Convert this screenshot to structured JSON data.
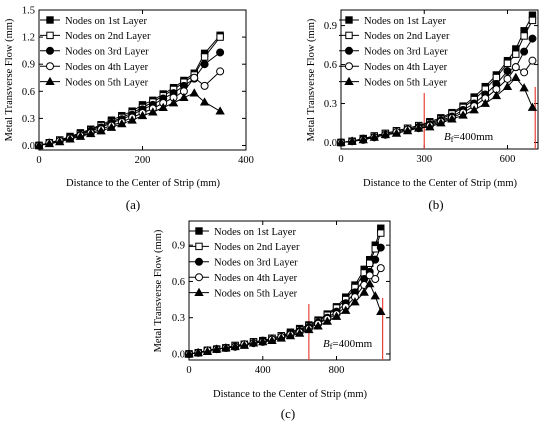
{
  "chart_data": [
    {
      "type": "line",
      "panel_label": "(a)",
      "xlabel": "Distance to the Center of Strip (mm)",
      "ylabel": "Metal Transverse Flow (mm)",
      "xlim": [
        0,
        400
      ],
      "ylim": [
        -0.05,
        1.5
      ],
      "xticks": [
        "0",
        "200",
        "400"
      ],
      "xtick_values": [
        0,
        200,
        400
      ],
      "yticks": [
        "0.0",
        "0.3",
        "0.6",
        "0.9",
        "1.2",
        "1.5"
      ],
      "ytick_values": [
        0,
        0.3,
        0.6,
        0.9,
        1.2,
        1.5
      ],
      "legend_position": "top-left",
      "x": [
        0,
        20,
        40,
        60,
        80,
        100,
        120,
        140,
        160,
        180,
        200,
        220,
        240,
        260,
        280,
        300,
        320,
        350
      ],
      "series": [
        {
          "name": "Nodes on 1st Layer",
          "marker": "square-filled",
          "values": [
            0.0,
            0.03,
            0.06,
            0.1,
            0.14,
            0.18,
            0.23,
            0.28,
            0.33,
            0.38,
            0.45,
            0.5,
            0.57,
            0.64,
            0.72,
            0.8,
            1.02,
            1.22
          ]
        },
        {
          "name": "Nodes on 2nd Layer",
          "marker": "square-open",
          "values": [
            0.0,
            0.03,
            0.06,
            0.09,
            0.13,
            0.17,
            0.22,
            0.26,
            0.31,
            0.36,
            0.42,
            0.48,
            0.55,
            0.62,
            0.7,
            0.78,
            0.98,
            1.2
          ]
        },
        {
          "name": "Nodes on 3rd Layer",
          "marker": "circle-filled",
          "values": [
            0.0,
            0.03,
            0.05,
            0.09,
            0.12,
            0.16,
            0.2,
            0.25,
            0.29,
            0.34,
            0.4,
            0.45,
            0.52,
            0.58,
            0.66,
            0.74,
            0.9,
            1.03
          ]
        },
        {
          "name": "Nodes on 4th Layer",
          "marker": "circle-open",
          "values": [
            0.0,
            0.03,
            0.05,
            0.08,
            0.11,
            0.14,
            0.18,
            0.22,
            0.26,
            0.31,
            0.36,
            0.41,
            0.47,
            0.53,
            0.6,
            0.75,
            0.66,
            0.82
          ]
        },
        {
          "name": "Nodes on 5th Layer",
          "marker": "triangle-filled",
          "values": [
            0.0,
            0.02,
            0.04,
            0.07,
            0.1,
            0.13,
            0.16,
            0.2,
            0.24,
            0.28,
            0.33,
            0.37,
            0.42,
            0.47,
            0.53,
            0.58,
            0.48,
            0.38
          ]
        }
      ]
    },
    {
      "type": "line",
      "panel_label": "(b)",
      "xlabel": "Distance to the Center of Strip (mm)",
      "ylabel": "Metal Transverse Flow (mm)",
      "xlim": [
        0,
        710
      ],
      "ylim": [
        -0.05,
        1.02
      ],
      "xticks": [
        "0",
        "300",
        "600"
      ],
      "xtick_values": [
        0,
        300,
        600
      ],
      "yticks": [
        "0.0",
        "0.3",
        "0.6",
        "0.9"
      ],
      "ytick_values": [
        0,
        0.3,
        0.6,
        0.9
      ],
      "legend_position": "top-left",
      "annotation": "B",
      "annotation_sub": "f",
      "annotation_rest": "=400mm",
      "red_lines_x": [
        300,
        700
      ],
      "x": [
        0,
        40,
        80,
        120,
        160,
        200,
        240,
        280,
        320,
        360,
        400,
        440,
        480,
        520,
        560,
        600,
        630,
        660,
        690
      ],
      "series": [
        {
          "name": "Nodes on 1st Layer",
          "marker": "square-filled",
          "values": [
            0.0,
            0.01,
            0.03,
            0.05,
            0.07,
            0.09,
            0.11,
            0.13,
            0.16,
            0.19,
            0.23,
            0.28,
            0.35,
            0.43,
            0.52,
            0.63,
            0.72,
            0.86,
            0.98
          ]
        },
        {
          "name": "Nodes on 2nd Layer",
          "marker": "square-open",
          "values": [
            0.0,
            0.01,
            0.03,
            0.05,
            0.07,
            0.09,
            0.11,
            0.13,
            0.15,
            0.18,
            0.22,
            0.27,
            0.33,
            0.41,
            0.5,
            0.61,
            0.68,
            0.82,
            0.94
          ]
        },
        {
          "name": "Nodes on 3rd Layer",
          "marker": "circle-filled",
          "values": [
            0.0,
            0.01,
            0.03,
            0.04,
            0.06,
            0.08,
            0.1,
            0.12,
            0.14,
            0.17,
            0.2,
            0.25,
            0.3,
            0.37,
            0.45,
            0.55,
            0.58,
            0.7,
            0.8
          ]
        },
        {
          "name": "Nodes on 4th Layer",
          "marker": "circle-open",
          "values": [
            0.0,
            0.01,
            0.02,
            0.04,
            0.06,
            0.08,
            0.1,
            0.11,
            0.13,
            0.16,
            0.19,
            0.23,
            0.28,
            0.34,
            0.41,
            0.49,
            0.58,
            0.54,
            0.63
          ]
        },
        {
          "name": "Nodes on 5th Layer",
          "marker": "triangle-filled",
          "values": [
            0.0,
            0.01,
            0.02,
            0.04,
            0.06,
            0.07,
            0.09,
            0.11,
            0.12,
            0.15,
            0.18,
            0.21,
            0.25,
            0.3,
            0.36,
            0.43,
            0.5,
            0.42,
            0.27
          ]
        }
      ]
    },
    {
      "type": "line",
      "panel_label": "(c)",
      "xlabel": "Distance to the Center of Strip (mm)",
      "ylabel": "Metal Transverse Flow (mm)",
      "xlim": [
        0,
        1090
      ],
      "ylim": [
        -0.05,
        1.1
      ],
      "xticks": [
        "0",
        "400",
        "800"
      ],
      "xtick_values": [
        0,
        400,
        800
      ],
      "yticks": [
        "0.0",
        "0.3",
        "0.6",
        "0.9"
      ],
      "ytick_values": [
        0,
        0.3,
        0.6,
        0.9
      ],
      "legend_position": "top-left",
      "annotation": "B",
      "annotation_sub": "f",
      "annotation_rest": "=400mm",
      "red_lines_x": [
        650,
        1050
      ],
      "x": [
        0,
        50,
        100,
        150,
        200,
        250,
        300,
        350,
        400,
        450,
        500,
        550,
        600,
        650,
        700,
        750,
        800,
        850,
        900,
        950,
        980,
        1010,
        1040
      ],
      "series": [
        {
          "name": "Nodes on 1st Layer",
          "marker": "square-filled",
          "values": [
            0.0,
            0.01,
            0.03,
            0.04,
            0.05,
            0.07,
            0.08,
            0.1,
            0.11,
            0.13,
            0.15,
            0.18,
            0.21,
            0.24,
            0.28,
            0.33,
            0.39,
            0.47,
            0.57,
            0.7,
            0.78,
            0.9,
            1.04
          ]
        },
        {
          "name": "Nodes on 2nd Layer",
          "marker": "square-open",
          "values": [
            0.0,
            0.01,
            0.03,
            0.04,
            0.05,
            0.07,
            0.08,
            0.1,
            0.11,
            0.13,
            0.15,
            0.17,
            0.2,
            0.23,
            0.27,
            0.32,
            0.38,
            0.45,
            0.55,
            0.67,
            0.75,
            0.87,
            1.0
          ]
        },
        {
          "name": "Nodes on 3rd Layer",
          "marker": "circle-filled",
          "values": [
            0.0,
            0.01,
            0.03,
            0.04,
            0.05,
            0.06,
            0.08,
            0.09,
            0.11,
            0.12,
            0.14,
            0.17,
            0.19,
            0.22,
            0.26,
            0.3,
            0.35,
            0.42,
            0.51,
            0.62,
            0.68,
            0.78,
            0.88
          ]
        },
        {
          "name": "Nodes on 4th Layer",
          "marker": "circle-open",
          "values": [
            0.0,
            0.01,
            0.03,
            0.04,
            0.05,
            0.06,
            0.08,
            0.09,
            0.1,
            0.12,
            0.14,
            0.16,
            0.18,
            0.21,
            0.25,
            0.29,
            0.33,
            0.39,
            0.47,
            0.57,
            0.65,
            0.62,
            0.71
          ]
        },
        {
          "name": "Nodes on 5th Layer",
          "marker": "triangle-filled",
          "values": [
            0.0,
            0.01,
            0.02,
            0.04,
            0.05,
            0.06,
            0.07,
            0.09,
            0.1,
            0.11,
            0.13,
            0.15,
            0.17,
            0.2,
            0.23,
            0.27,
            0.31,
            0.36,
            0.43,
            0.51,
            0.58,
            0.48,
            0.35
          ]
        }
      ]
    }
  ]
}
